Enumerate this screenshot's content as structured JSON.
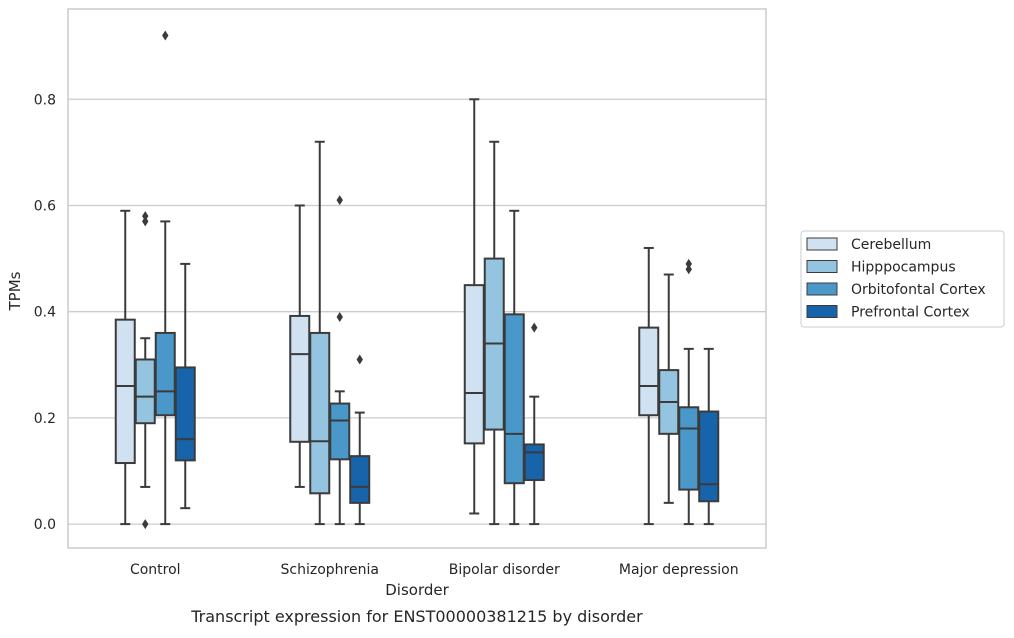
{
  "chart_data": {
    "type": "box",
    "title": "Transcript expression for ENST00000381215 by disorder",
    "xlabel": "Disorder",
    "ylabel": "TPMs",
    "ylim": [
      -0.045,
      0.97
    ],
    "yticks": [
      0.0,
      0.2,
      0.4,
      0.6,
      0.8
    ],
    "ytick_labels": [
      "0.0",
      "0.2",
      "0.4",
      "0.6",
      "0.8"
    ],
    "grid": "y",
    "legend_position": "right",
    "categories": [
      "Control",
      "Schizophrenia",
      "Bipolar disorder",
      "Major depression"
    ],
    "series": [
      {
        "name": "Cerebellum",
        "color": "#d0e1f2",
        "boxes": [
          {
            "whislo": 0.0,
            "q1": 0.115,
            "med": 0.26,
            "q3": 0.385,
            "whishi": 0.59,
            "fliers": []
          },
          {
            "whislo": 0.07,
            "q1": 0.155,
            "med": 0.32,
            "q3": 0.392,
            "whishi": 0.6,
            "fliers": []
          },
          {
            "whislo": 0.02,
            "q1": 0.152,
            "med": 0.247,
            "q3": 0.45,
            "whishi": 0.8,
            "fliers": []
          },
          {
            "whislo": 0.0,
            "q1": 0.205,
            "med": 0.26,
            "q3": 0.37,
            "whishi": 0.52,
            "fliers": []
          }
        ]
      },
      {
        "name": "Hipppocampus",
        "color": "#94c4df",
        "boxes": [
          {
            "whislo": 0.07,
            "q1": 0.19,
            "med": 0.24,
            "q3": 0.31,
            "whishi": 0.35,
            "fliers": [
              0.0,
              0.57,
              0.58
            ]
          },
          {
            "whislo": 0.0,
            "q1": 0.058,
            "med": 0.156,
            "q3": 0.36,
            "whishi": 0.72,
            "fliers": []
          },
          {
            "whislo": 0.0,
            "q1": 0.178,
            "med": 0.34,
            "q3": 0.5,
            "whishi": 0.72,
            "fliers": []
          },
          {
            "whislo": 0.04,
            "q1": 0.17,
            "med": 0.23,
            "q3": 0.29,
            "whishi": 0.47,
            "fliers": []
          }
        ]
      },
      {
        "name": "Orbitofontal Cortex",
        "color": "#4a98c9",
        "boxes": [
          {
            "whislo": 0.0,
            "q1": 0.205,
            "med": 0.25,
            "q3": 0.36,
            "whishi": 0.57,
            "fliers": [
              0.92
            ]
          },
          {
            "whislo": 0.0,
            "q1": 0.122,
            "med": 0.195,
            "q3": 0.227,
            "whishi": 0.25,
            "fliers": [
              0.39,
              0.61
            ]
          },
          {
            "whislo": 0.0,
            "q1": 0.077,
            "med": 0.17,
            "q3": 0.395,
            "whishi": 0.59,
            "fliers": []
          },
          {
            "whislo": 0.0,
            "q1": 0.065,
            "med": 0.18,
            "q3": 0.22,
            "whishi": 0.33,
            "fliers": [
              0.48,
              0.49
            ]
          }
        ]
      },
      {
        "name": "Prefrontal Cortex",
        "color": "#1764ab",
        "boxes": [
          {
            "whislo": 0.03,
            "q1": 0.12,
            "med": 0.16,
            "q3": 0.295,
            "whishi": 0.49,
            "fliers": []
          },
          {
            "whislo": 0.0,
            "q1": 0.04,
            "med": 0.07,
            "q3": 0.128,
            "whishi": 0.21,
            "fliers": [
              0.31
            ]
          },
          {
            "whislo": 0.0,
            "q1": 0.083,
            "med": 0.135,
            "q3": 0.15,
            "whishi": 0.24,
            "fliers": [
              0.37
            ]
          },
          {
            "whislo": 0.0,
            "q1": 0.043,
            "med": 0.075,
            "q3": 0.212,
            "whishi": 0.33,
            "fliers": []
          }
        ]
      }
    ]
  }
}
